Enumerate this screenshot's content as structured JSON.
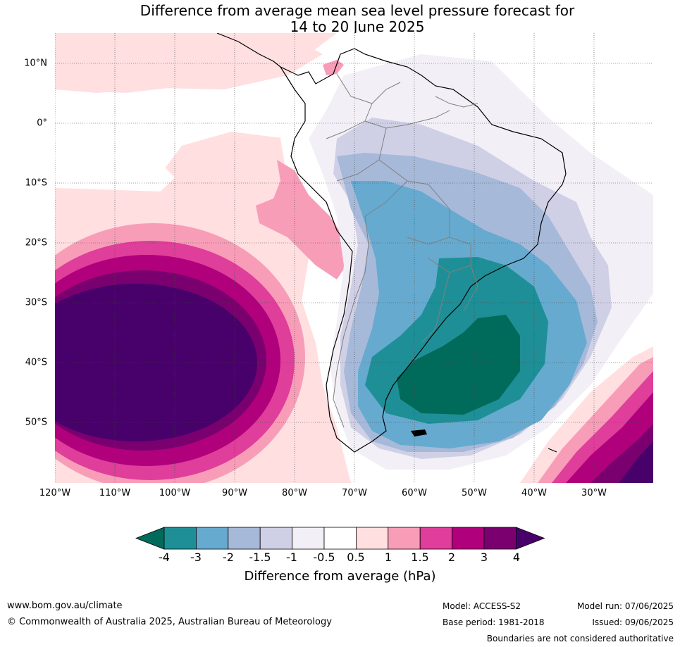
{
  "title": {
    "line1": "Difference from average mean sea level pressure forecast for",
    "line2": "14 to 20 June 2025"
  },
  "map": {
    "lat_labels": [
      "10°N",
      "0°",
      "10°S",
      "20°S",
      "30°S",
      "40°S",
      "50°S"
    ],
    "lon_labels": [
      "120°W",
      "110°W",
      "100°W",
      "90°W",
      "80°W",
      "70°W",
      "60°W",
      "50°W",
      "40°W",
      "30°W"
    ],
    "extent": {
      "lon": [
        -120,
        -20.5
      ],
      "lat": [
        -60,
        15
      ]
    },
    "projection": "equirectangular",
    "gridlines": "dotted"
  },
  "colorbar": {
    "title": "Difference from average (hPa)",
    "tick_labels": [
      "-4",
      "-3",
      "-2",
      "-1.5",
      "-1",
      "-0.5",
      "0.5",
      "1",
      "1.5",
      "2",
      "3",
      "4"
    ],
    "colors": [
      "#006b5a",
      "#1e8f96",
      "#66aacf",
      "#a6b9d9",
      "#cfd0e6",
      "#f2eff6",
      "#ffffff",
      "#ffdfe0",
      "#f89db8",
      "#df3e9b",
      "#b1007c",
      "#7a006f",
      "#48006a"
    ],
    "extends": "both"
  },
  "footer": {
    "url": "www.bom.gov.au/climate",
    "copyright": "© Commonwealth of Australia 2025, Australian Bureau of Meteorology",
    "model": "Model: ACCESS-S2",
    "base_period": "Base period: 1981-2018",
    "model_run": "Model run: 07/06/2025",
    "issued": "Issued: 09/06/2025",
    "disclaimer": "Boundaries are not considered authoritative"
  }
}
